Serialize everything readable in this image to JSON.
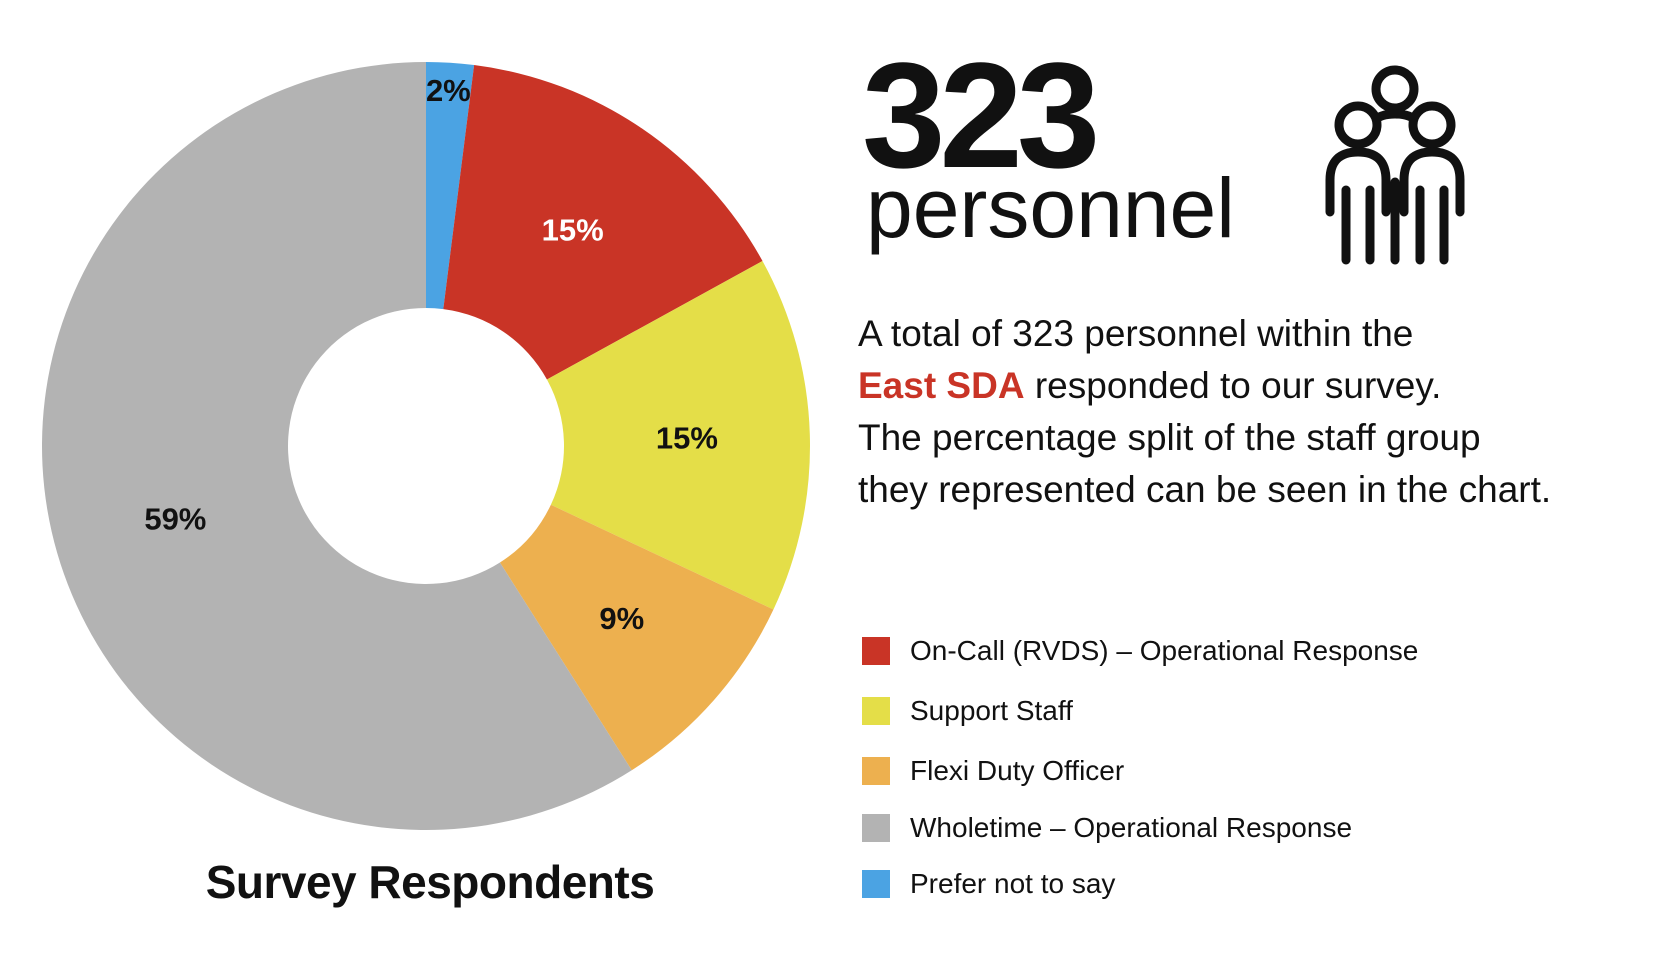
{
  "chart_data": {
    "type": "pie",
    "title": "Survey Respondents",
    "categories": [
      "Prefer not to say",
      "On-Call (RVDS) – Operational Response",
      "Support Staff",
      "Flexi Duty Officer",
      "Wholetime – Operational Response"
    ],
    "values": [
      2,
      15,
      15,
      9,
      59
    ],
    "labels": [
      "2%",
      "15%",
      "15%",
      "9%",
      "59%"
    ],
    "colors": [
      "#4BA3E3",
      "#C93426",
      "#E4DE48",
      "#EDB04F",
      "#B3B3B3"
    ],
    "label_colors": [
      "#111111",
      "#FFFFFF",
      "#111111",
      "#111111",
      "#111111"
    ],
    "donut": true,
    "legend": {
      "placement": "bottom-right",
      "items": [
        {
          "label": "On-Call (RVDS) – Operational Response",
          "color": "#C93426"
        },
        {
          "label": "Support Staff",
          "color": "#E4DE48"
        },
        {
          "label": "Flexi Duty Officer",
          "color": "#EDB04F"
        },
        {
          "label": "Wholetime – Operational Response",
          "color": "#B3B3B3"
        },
        {
          "label": "Prefer not to say",
          "color": "#4BA3E3"
        }
      ]
    }
  },
  "stat": {
    "number": "323",
    "unit": "personnel",
    "icon": "people-group-icon"
  },
  "description": {
    "line1": "A total of 323 personnel within the",
    "highlight": "East SDA",
    "line2_rest": " responded to our survey.",
    "line3": "The percentage split of the staff group",
    "line4": "they represented can be seen in the chart.",
    "highlight_color": "#C93426"
  }
}
